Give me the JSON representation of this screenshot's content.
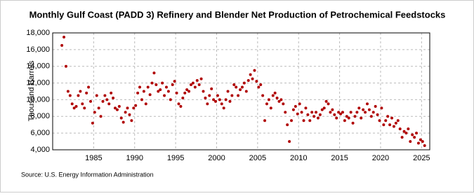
{
  "chart_data": {
    "type": "scatter",
    "title": "Monthly Gulf Coast (PADD 3) Refinery and Blender Net Production of Petrochemical Feedstocks",
    "y_label": "Thousand Barrels",
    "source": "Source: U.S. Energy Information Administration",
    "color": "#b00000",
    "grid": true,
    "xlim": [
      1980,
      2026
    ],
    "ylim": [
      4000,
      18000
    ],
    "xticks": [
      1985,
      1990,
      1995,
      2000,
      2005,
      2010,
      2015,
      2020,
      2025
    ],
    "yticks": [
      {
        "value": 4000,
        "label": "4,000"
      },
      {
        "value": 6000,
        "label": "6,000"
      },
      {
        "value": 8000,
        "label": "8,000"
      },
      {
        "value": 10000,
        "label": "10,000"
      },
      {
        "value": 12000,
        "label": "12,000"
      },
      {
        "value": 14000,
        "label": "14,000"
      },
      {
        "value": 16000,
        "label": "16,000"
      },
      {
        "value": 18000,
        "label": "18,000"
      }
    ],
    "x": [
      1981.125,
      1981.375,
      1981.625,
      1981.875,
      1982.125,
      1982.375,
      1982.625,
      1982.875,
      1983.125,
      1983.375,
      1983.625,
      1983.875,
      1984.125,
      1984.375,
      1984.625,
      1984.875,
      1985.125,
      1985.375,
      1985.625,
      1985.875,
      1986.125,
      1986.375,
      1986.625,
      1986.875,
      1987.125,
      1987.375,
      1987.625,
      1987.875,
      1988.125,
      1988.375,
      1988.625,
      1988.875,
      1989.125,
      1989.375,
      1989.625,
      1989.875,
      1990.125,
      1990.375,
      1990.625,
      1990.875,
      1991.125,
      1991.375,
      1991.625,
      1991.875,
      1992.125,
      1992.375,
      1992.625,
      1992.875,
      1993.125,
      1993.375,
      1993.625,
      1993.875,
      1994.125,
      1994.375,
      1994.625,
      1994.875,
      1995.125,
      1995.375,
      1995.625,
      1995.875,
      1996.125,
      1996.375,
      1996.625,
      1996.875,
      1997.125,
      1997.375,
      1997.625,
      1997.875,
      1998.125,
      1998.375,
      1998.625,
      1998.875,
      1999.125,
      1999.375,
      1999.625,
      1999.875,
      2000.125,
      2000.375,
      2000.625,
      2000.875,
      2001.125,
      2001.375,
      2001.625,
      2001.875,
      2002.125,
      2002.375,
      2002.625,
      2002.875,
      2003.125,
      2003.375,
      2003.625,
      2003.875,
      2004.125,
      2004.375,
      2004.625,
      2004.875,
      2005.125,
      2005.375,
      2005.625,
      2005.875,
      2006.125,
      2006.375,
      2006.625,
      2006.875,
      2007.125,
      2007.375,
      2007.625,
      2007.875,
      2008.125,
      2008.375,
      2008.625,
      2008.875,
      2009.125,
      2009.375,
      2009.625,
      2009.875,
      2010.125,
      2010.375,
      2010.625,
      2010.875,
      2011.125,
      2011.375,
      2011.625,
      2011.875,
      2012.125,
      2012.375,
      2012.625,
      2012.875,
      2013.125,
      2013.375,
      2013.625,
      2013.875,
      2014.125,
      2014.375,
      2014.625,
      2014.875,
      2015.125,
      2015.375,
      2015.625,
      2015.875,
      2016.125,
      2016.375,
      2016.625,
      2016.875,
      2017.125,
      2017.375,
      2017.625,
      2017.875,
      2018.125,
      2018.375,
      2018.625,
      2018.875,
      2019.125,
      2019.375,
      2019.625,
      2019.875,
      2020.125,
      2020.375,
      2020.625,
      2020.875,
      2021.125,
      2021.375,
      2021.625,
      2021.875,
      2022.125,
      2022.375,
      2022.625,
      2022.875,
      2023.125,
      2023.375,
      2023.625,
      2023.875,
      2024.125,
      2024.375,
      2024.625,
      2024.875,
      2025.125,
      2025.375
    ],
    "values": [
      16500,
      17500,
      14000,
      11000,
      10500,
      9500,
      9000,
      9200,
      10500,
      11000,
      9500,
      9000,
      10800,
      11500,
      9800,
      7200,
      8500,
      10500,
      9000,
      8000,
      9800,
      10500,
      10000,
      9500,
      10800,
      10200,
      9000,
      8800,
      9200,
      7800,
      7300,
      8500,
      9000,
      8200,
      7500,
      9000,
      9300,
      10800,
      11500,
      10000,
      11000,
      9500,
      11500,
      10600,
      12000,
      13200,
      11800,
      11000,
      11200,
      12000,
      10500,
      11500,
      11000,
      10000,
      11800,
      12200,
      10800,
      9500,
      9200,
      10200,
      10800,
      11200,
      11000,
      11800,
      12000,
      11500,
      12300,
      11800,
      12500,
      11000,
      10200,
      9500,
      10500,
      11300,
      10000,
      9800,
      10500,
      10000,
      9500,
      9000,
      10000,
      11000,
      9800,
      10500,
      11800,
      11500,
      10500,
      11200,
      11500,
      12000,
      11000,
      12300,
      13000,
      12500,
      13500,
      12200,
      11500,
      11800,
      10500,
      7500,
      9500,
      10000,
      9000,
      10500,
      10800,
      10200,
      9800,
      10000,
      9500,
      8500,
      7000,
      5000,
      7500,
      8800,
      9200,
      8300,
      9500,
      8500,
      7500,
      9000,
      8200,
      7500,
      8500,
      8000,
      8500,
      7800,
      8200,
      8800,
      9000,
      9800,
      9500,
      8500,
      8800,
      8200,
      7800,
      8500,
      8300,
      8500,
      7500,
      8000,
      7800,
      8500,
      7200,
      8000,
      8500,
      9000,
      7800,
      8800,
      8500,
      9500,
      8800,
      8000,
      8500,
      9200,
      8200,
      7500,
      9000,
      7000,
      7500,
      8000,
      7000,
      7800,
      6800,
      7200,
      7500,
      6500,
      5500,
      6200,
      6000,
      6500,
      5000,
      5800,
      5500,
      6000,
      4800,
      5200,
      5000,
      4500
    ]
  }
}
